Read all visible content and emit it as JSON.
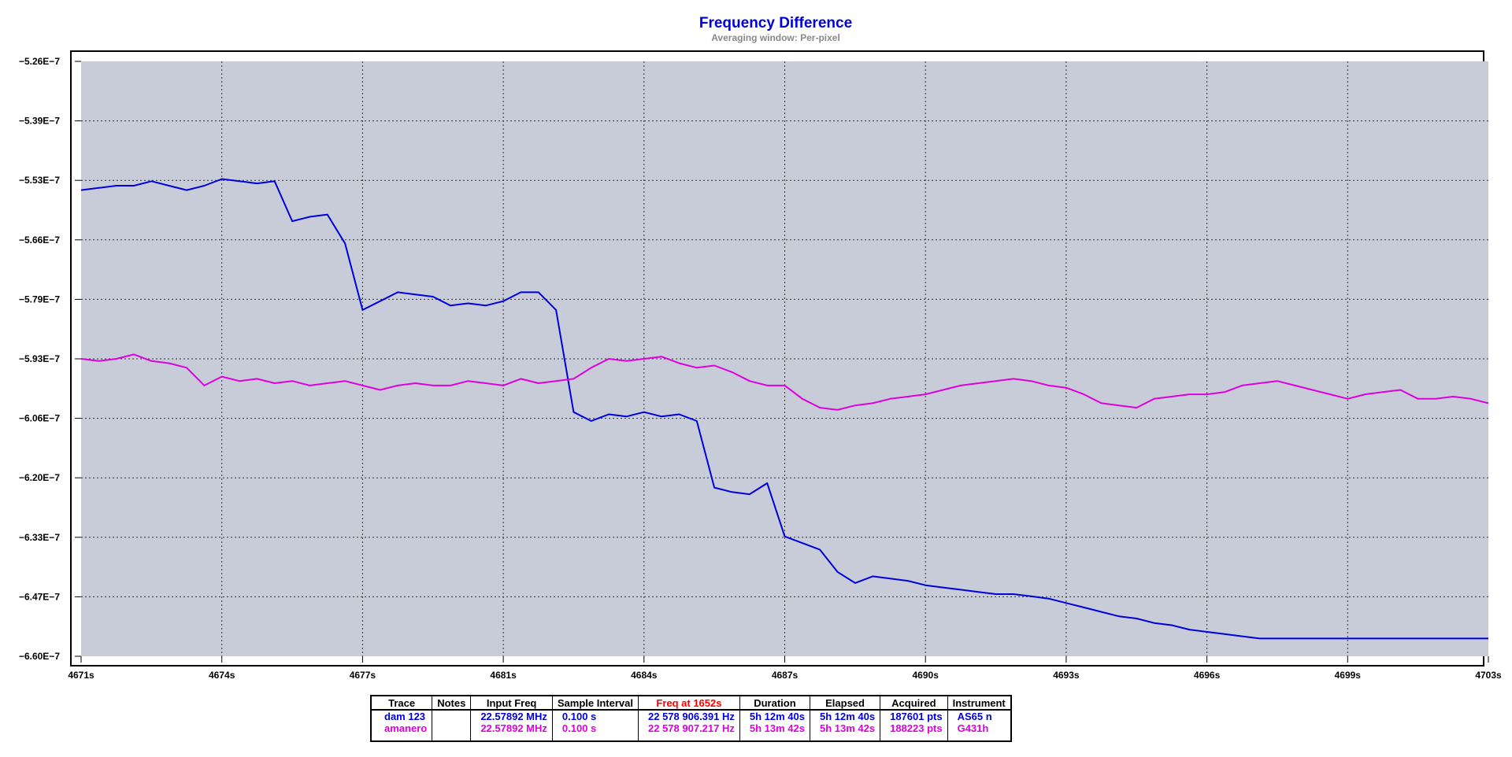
{
  "chart_data": {
    "type": "line",
    "title": "Frequency Difference",
    "subtitle": "Averaging window: Per-pixel",
    "xlabel": "",
    "ylabel": "",
    "x_unit": "s",
    "xlim": [
      4671,
      4703
    ],
    "ylim": [
      -6.6e-07,
      -5.26e-07
    ],
    "x_ticks": [
      "4671s",
      "4674s",
      "4677s",
      "4681s",
      "4684s",
      "4687s",
      "4690s",
      "4693s",
      "4696s",
      "4699s",
      "4703s"
    ],
    "y_ticks": [
      "−5.26E−7",
      "−5.39E−7",
      "−5.53E−7",
      "−5.66E−7",
      "−5.79E−7",
      "−5.93E−7",
      "−6.06E−7",
      "−6.20E−7",
      "−6.33E−7",
      "−6.47E−7",
      "−6.60E−7"
    ],
    "grid": true,
    "series": [
      {
        "name": "dam 123",
        "color": "#0000dd",
        "x": [
          4671.0,
          4671.4,
          4671.8,
          4672.2,
          4672.6,
          4673.0,
          4673.4,
          4673.8,
          4674.2,
          4674.6,
          4675.0,
          4675.4,
          4675.8,
          4676.2,
          4676.6,
          4677.0,
          4677.4,
          4677.8,
          4678.2,
          4678.6,
          4679.0,
          4679.4,
          4679.8,
          4680.2,
          4680.6,
          4681.0,
          4681.4,
          4681.8,
          4682.2,
          4682.6,
          4683.0,
          4683.4,
          4683.8,
          4684.2,
          4684.6,
          4685.0,
          4685.4,
          4685.8,
          4686.2,
          4686.6,
          4687.0,
          4687.4,
          4687.8,
          4688.2,
          4688.6,
          4689.0,
          4689.4,
          4689.8,
          4690.2,
          4690.6,
          4691.0,
          4691.4,
          4691.8,
          4692.2,
          4692.6,
          4693.0,
          4693.4,
          4693.8,
          4694.2,
          4694.6,
          4695.0,
          4695.4,
          4695.8,
          4696.2,
          4696.6,
          4697.0,
          4697.4,
          4697.8,
          4698.2,
          4698.6,
          4699.0,
          4699.4,
          4699.8,
          4700.2,
          4700.6,
          4701.0,
          4701.4,
          4701.8,
          4702.2,
          4702.6,
          4703.0
        ],
        "y": [
          -5.55e-07,
          -5.545e-07,
          -5.54e-07,
          -5.54e-07,
          -5.53e-07,
          -5.54e-07,
          -5.55e-07,
          -5.54e-07,
          -5.525e-07,
          -5.53e-07,
          -5.535e-07,
          -5.53e-07,
          -5.62e-07,
          -5.61e-07,
          -5.605e-07,
          -5.67e-07,
          -5.82e-07,
          -5.8e-07,
          -5.78e-07,
          -5.785e-07,
          -5.79e-07,
          -5.81e-07,
          -5.805e-07,
          -5.81e-07,
          -5.8e-07,
          -5.78e-07,
          -5.78e-07,
          -5.82e-07,
          -6.05e-07,
          -6.07e-07,
          -6.055e-07,
          -6.06e-07,
          -6.05e-07,
          -6.06e-07,
          -6.055e-07,
          -6.07e-07,
          -6.22e-07,
          -6.23e-07,
          -6.235e-07,
          -6.21e-07,
          -6.33e-07,
          -6.345e-07,
          -6.36e-07,
          -6.41e-07,
          -6.435e-07,
          -6.42e-07,
          -6.425e-07,
          -6.43e-07,
          -6.44e-07,
          -6.445e-07,
          -6.45e-07,
          -6.455e-07,
          -6.46e-07,
          -6.46e-07,
          -6.465e-07,
          -6.47e-07,
          -6.48e-07,
          -6.49e-07,
          -6.5e-07,
          -6.51e-07,
          -6.515e-07,
          -6.525e-07,
          -6.53e-07,
          -6.54e-07,
          -6.545e-07,
          -6.55e-07,
          -6.555e-07,
          -6.56e-07,
          -6.56e-07,
          -6.56e-07,
          -6.56e-07,
          -6.56e-07,
          -6.56e-07,
          -6.56e-07,
          -6.56e-07,
          -6.56e-07,
          -6.56e-07,
          -6.56e-07,
          -6.56e-07,
          -6.56e-07,
          -6.56e-07
        ]
      },
      {
        "name": "amanero",
        "color": "#dd00dd",
        "x": [
          4671.0,
          4671.4,
          4671.8,
          4672.2,
          4672.6,
          4673.0,
          4673.4,
          4673.8,
          4674.2,
          4674.6,
          4675.0,
          4675.4,
          4675.8,
          4676.2,
          4676.6,
          4677.0,
          4677.4,
          4677.8,
          4678.2,
          4678.6,
          4679.0,
          4679.4,
          4679.8,
          4680.2,
          4680.6,
          4681.0,
          4681.4,
          4681.8,
          4682.2,
          4682.6,
          4683.0,
          4683.4,
          4683.8,
          4684.2,
          4684.6,
          4685.0,
          4685.4,
          4685.8,
          4686.2,
          4686.6,
          4687.0,
          4687.4,
          4687.8,
          4688.2,
          4688.6,
          4689.0,
          4689.4,
          4689.8,
          4690.2,
          4690.6,
          4691.0,
          4691.4,
          4691.8,
          4692.2,
          4692.6,
          4693.0,
          4693.4,
          4693.8,
          4694.2,
          4694.6,
          4695.0,
          4695.4,
          4695.8,
          4696.2,
          4696.6,
          4697.0,
          4697.4,
          4697.8,
          4698.2,
          4698.6,
          4699.0,
          4699.4,
          4699.8,
          4700.2,
          4700.6,
          4701.0,
          4701.4,
          4701.8,
          4702.2,
          4702.6,
          4703.0
        ],
        "y": [
          -5.93e-07,
          -5.935e-07,
          -5.93e-07,
          -5.92e-07,
          -5.935e-07,
          -5.94e-07,
          -5.95e-07,
          -5.99e-07,
          -5.97e-07,
          -5.98e-07,
          -5.975e-07,
          -5.985e-07,
          -5.98e-07,
          -5.99e-07,
          -5.985e-07,
          -5.98e-07,
          -5.99e-07,
          -6e-07,
          -5.99e-07,
          -5.985e-07,
          -5.99e-07,
          -5.99e-07,
          -5.98e-07,
          -5.985e-07,
          -5.99e-07,
          -5.975e-07,
          -5.985e-07,
          -5.98e-07,
          -5.975e-07,
          -5.95e-07,
          -5.93e-07,
          -5.935e-07,
          -5.93e-07,
          -5.925e-07,
          -5.94e-07,
          -5.95e-07,
          -5.945e-07,
          -5.96e-07,
          -5.98e-07,
          -5.99e-07,
          -5.99e-07,
          -6.02e-07,
          -6.04e-07,
          -6.045e-07,
          -6.035e-07,
          -6.03e-07,
          -6.02e-07,
          -6.015e-07,
          -6.01e-07,
          -6e-07,
          -5.99e-07,
          -5.985e-07,
          -5.98e-07,
          -5.975e-07,
          -5.98e-07,
          -5.99e-07,
          -5.995e-07,
          -6.01e-07,
          -6.03e-07,
          -6.035e-07,
          -6.04e-07,
          -6.02e-07,
          -6.015e-07,
          -6.01e-07,
          -6.01e-07,
          -6.005e-07,
          -5.99e-07,
          -5.985e-07,
          -5.98e-07,
          -5.99e-07,
          -6e-07,
          -6.01e-07,
          -6.02e-07,
          -6.01e-07,
          -6.005e-07,
          -6e-07,
          -6.02e-07,
          -6.02e-07,
          -6.015e-07,
          -6.02e-07,
          -6.03e-07
        ]
      }
    ]
  },
  "table": {
    "headers": {
      "trace": "Trace",
      "notes": "Notes",
      "input_freq": "Input Freq",
      "sample_interval": "Sample Interval",
      "freq_at": "Freq at 1652s",
      "duration": "Duration",
      "elapsed": "Elapsed",
      "acquired": "Acquired",
      "instrument": "Instrument"
    },
    "header_colors": {
      "freq_at": "#ff0000"
    },
    "rows": [
      {
        "trace": "dam 123",
        "notes": "",
        "input_freq": "22.57892 MHz",
        "sample_interval": "0.100 s",
        "freq_at": "22 578 906.391 Hz",
        "duration": "5h 12m 40s",
        "elapsed": "5h 12m 40s",
        "acquired": "187601 pts",
        "instrument": "AS65 n",
        "color": "#0000dd"
      },
      {
        "trace": "amanero",
        "notes": "",
        "input_freq": "22.57892 MHz",
        "sample_interval": "0.100 s",
        "freq_at": "22 578 907.217 Hz",
        "duration": "5h 13m 42s",
        "elapsed": "5h 13m 42s",
        "acquired": "188223 pts",
        "instrument": "G431h",
        "color": "#dd00dd"
      }
    ]
  },
  "colors": {
    "plot_background": "#c8ccd8",
    "title": "#0000dd",
    "subtitle": "#888888",
    "frame": "#000000",
    "grid": "#303030"
  }
}
